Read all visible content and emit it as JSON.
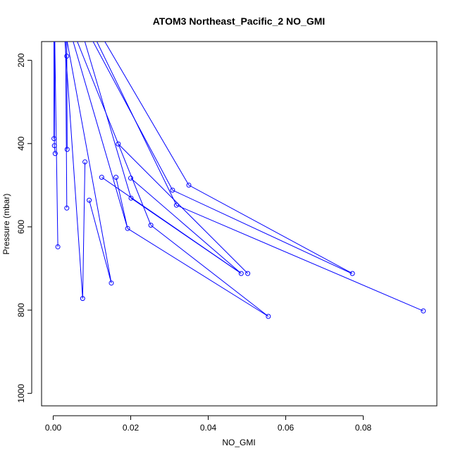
{
  "chart_data": {
    "type": "line",
    "title": "ATOM3 Northeast_Pacific_2 NO_GMI",
    "xlabel": "NO_GMI",
    "ylabel": "Pressure (mbar)",
    "xlim": [
      -0.003,
      0.099
    ],
    "ylim": [
      1030,
      155
    ],
    "y_reversed": true,
    "x_ticks": [
      "0.00",
      "0.02",
      "0.04",
      "0.06",
      "0.08"
    ],
    "x_tick_values": [
      0.0,
      0.02,
      0.04,
      0.06,
      0.08
    ],
    "y_ticks": [
      "200",
      "400",
      "600",
      "800",
      "1000"
    ],
    "y_tick_values": [
      200,
      400,
      600,
      800,
      1000
    ],
    "grid": false,
    "color": "#0000ff",
    "series": [
      {
        "x": [
          0.0002,
          0.0002
        ],
        "y": [
          150,
          388
        ]
      },
      {
        "x": [
          0.0004,
          0.0003,
          0.0005
        ],
        "y": [
          150,
          405,
          424
        ]
      },
      {
        "x": [
          0.0004,
          0.0012
        ],
        "y": [
          150,
          648
        ]
      },
      {
        "x": [
          0.0035,
          0.0035,
          0.0036
        ],
        "y": [
          150,
          190,
          414
        ]
      },
      {
        "x": [
          0.0032,
          0.0035
        ],
        "y": [
          150,
          555
        ]
      },
      {
        "x": [
          0.003,
          0.0076,
          0.0082
        ],
        "y": [
          150,
          772,
          444
        ]
      },
      {
        "x": [
          0.0035,
          0.015,
          0.0093
        ],
        "y": [
          150,
          735,
          536
        ]
      },
      {
        "x": [
          0.005,
          0.0192,
          0.0162
        ],
        "y": [
          150,
          604,
          481
        ]
      },
      {
        "x": [
          0.006,
          0.0252
        ],
        "y": [
          150,
          596
        ]
      },
      {
        "x": [
          0.008,
          0.0201,
          0.0485
        ],
        "y": [
          150,
          531,
          712
        ]
      },
      {
        "x": [
          0.01,
          0.0308,
          0.077
        ],
        "y": [
          150,
          512,
          712
        ]
      },
      {
        "x": [
          0.011,
          0.0318,
          0.0955
        ],
        "y": [
          150,
          548,
          802
        ]
      },
      {
        "x": [
          0.013,
          0.035,
          0.0772
        ],
        "y": [
          150,
          500,
          712
        ]
      },
      {
        "x": [
          0.0168,
          0.0502
        ],
        "y": [
          401,
          712
        ]
      },
      {
        "x": [
          0.0125,
          0.0485
        ],
        "y": [
          481,
          712
        ]
      },
      {
        "x": [
          0.02,
          0.0485
        ],
        "y": [
          483,
          712
        ]
      },
      {
        "x": [
          0.0192,
          0.0555
        ],
        "y": [
          604,
          815
        ]
      },
      {
        "x": [
          0.0252,
          0.0555
        ],
        "y": [
          596,
          815
        ]
      }
    ],
    "points": {
      "x": [
        0.0002,
        0.0003,
        0.0005,
        0.0035,
        0.0036,
        0.0035,
        0.0012,
        0.0082,
        0.0093,
        0.0076,
        0.0125,
        0.0162,
        0.0168,
        0.02,
        0.0201,
        0.015,
        0.0192,
        0.0252,
        0.0308,
        0.035,
        0.0318,
        0.0485,
        0.0502,
        0.0555,
        0.0772,
        0.0955
      ],
      "y": [
        388,
        405,
        424,
        190,
        414,
        555,
        648,
        444,
        536,
        772,
        481,
        481,
        401,
        483,
        531,
        735,
        604,
        596,
        512,
        500,
        548,
        712,
        712,
        815,
        712,
        802
      ]
    }
  }
}
